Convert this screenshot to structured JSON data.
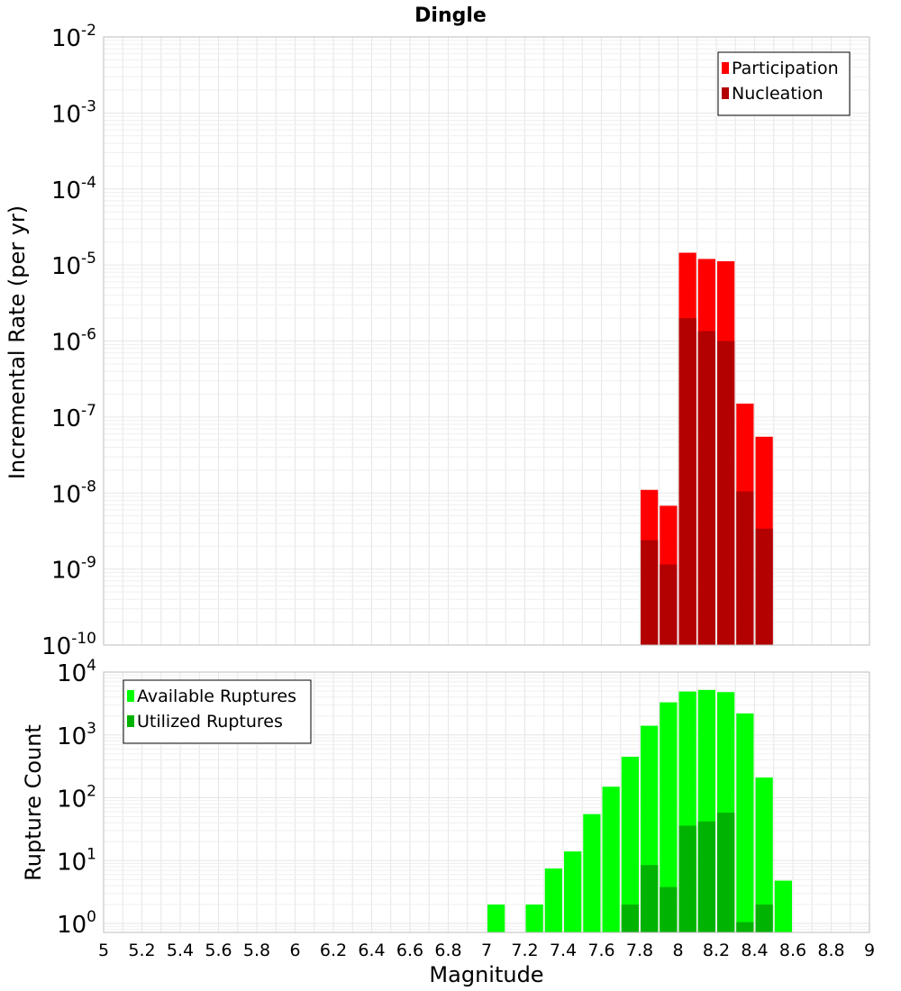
{
  "title": "Dingle",
  "xlabel": "Magnitude",
  "colors": {
    "participation": "#ff0000",
    "nucleation": "#b30000",
    "available": "#00ff00",
    "utilized": "#00b300"
  },
  "chart_data": [
    {
      "type": "bar",
      "scale": "log",
      "ylabel": "Incremental Rate (per yr)",
      "xlim": [
        5,
        9
      ],
      "ylim": [
        1e-10,
        0.01
      ],
      "y_ticks": [
        {
          "base": "10",
          "exp": "-2"
        },
        {
          "base": "10",
          "exp": "-3"
        },
        {
          "base": "10",
          "exp": "-4"
        },
        {
          "base": "10",
          "exp": "-5"
        },
        {
          "base": "10",
          "exp": "-6"
        },
        {
          "base": "10",
          "exp": "-7"
        },
        {
          "base": "10",
          "exp": "-8"
        },
        {
          "base": "10",
          "exp": "-9"
        },
        {
          "base": "10",
          "exp": "-10"
        }
      ],
      "grid": true,
      "legend_position": "top-right",
      "series": [
        {
          "name": "Participation",
          "color": "#ff0000",
          "x": [
            7.85,
            7.95,
            8.05,
            8.15,
            8.25,
            8.35,
            8.45
          ],
          "values": [
            1.1e-08,
            6.8e-09,
            1.45e-05,
            1.2e-05,
            1.12e-05,
            1.5e-07,
            5.5e-08
          ]
        },
        {
          "name": "Nucleation",
          "color": "#b30000",
          "x": [
            7.85,
            7.95,
            8.05,
            8.15,
            8.25,
            8.35,
            8.45
          ],
          "values": [
            2.4e-09,
            1.15e-09,
            2e-06,
            1.35e-06,
            1e-06,
            1.05e-08,
            3.4e-09
          ]
        }
      ]
    },
    {
      "type": "bar",
      "scale": "log",
      "ylabel": "Rupture Count",
      "xlim": [
        5,
        9
      ],
      "ylim": [
        0.72,
        10000
      ],
      "y_ticks": [
        {
          "base": "10",
          "exp": "4"
        },
        {
          "base": "10",
          "exp": "3"
        },
        {
          "base": "10",
          "exp": "2"
        },
        {
          "base": "10",
          "exp": "1"
        },
        {
          "base": "10",
          "exp": "0"
        }
      ],
      "x_ticks": [
        "5",
        "5.2",
        "5.4",
        "5.6",
        "5.8",
        "6",
        "6.2",
        "6.4",
        "6.6",
        "6.8",
        "7",
        "7.2",
        "7.4",
        "7.6",
        "7.8",
        "8",
        "8.2",
        "8.4",
        "8.6",
        "8.8",
        "9"
      ],
      "grid": true,
      "legend_position": "top-left",
      "series": [
        {
          "name": "Available Ruptures",
          "color": "#00ff00",
          "x": [
            7.05,
            7.25,
            7.35,
            7.45,
            7.55,
            7.65,
            7.75,
            7.85,
            7.95,
            8.05,
            8.15,
            8.25,
            8.35,
            8.45,
            8.55
          ],
          "values": [
            2,
            2,
            7.5,
            14,
            55,
            150,
            450,
            1400,
            3300,
            4900,
            5200,
            4800,
            2200,
            210,
            4.8
          ]
        },
        {
          "name": "Utilized Ruptures",
          "color": "#00b300",
          "x": [
            7.75,
            7.85,
            7.95,
            8.05,
            8.15,
            8.25,
            8.35,
            8.45
          ],
          "values": [
            2,
            8.5,
            3.8,
            36,
            42,
            58,
            1.05,
            2
          ]
        }
      ]
    }
  ]
}
